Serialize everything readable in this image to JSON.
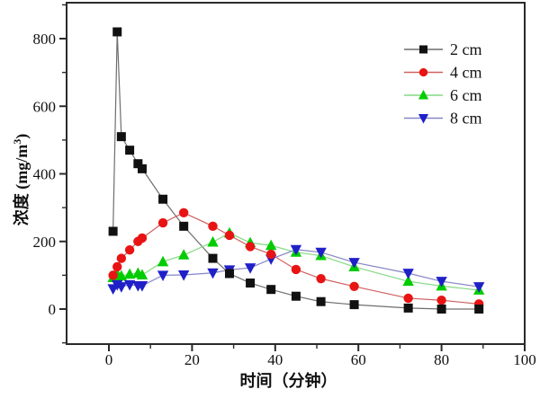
{
  "figure": {
    "background": "#ffffff",
    "frame_color": "#2a2a2a"
  },
  "chart_data": {
    "type": "line",
    "title": "",
    "xlabel": "时间（分钟）",
    "ylabel": "浓度 (mg/m³)",
    "ylabel_parts": {
      "prefix": "浓度 (mg/m",
      "sup": "3",
      "suffix": ")"
    },
    "xlim": [
      -10,
      100
    ],
    "ylim": [
      -104,
      906
    ],
    "x_ticks_major": [
      0,
      20,
      40,
      60,
      80,
      100
    ],
    "x_tick_labels": [
      "0",
      "20",
      "40",
      "60",
      "80",
      "100"
    ],
    "x_ticks_minor": [
      10,
      30,
      50,
      70,
      90
    ],
    "y_ticks_major": [
      0,
      200,
      400,
      600,
      800
    ],
    "y_tick_labels": [
      "0",
      "200",
      "400",
      "600",
      "800"
    ],
    "y_ticks_minor": [
      -100,
      100,
      300,
      500,
      700,
      900
    ],
    "grid": false,
    "legend_position": "top-right",
    "x": [
      1,
      2,
      3,
      5,
      7,
      8,
      13,
      18,
      25,
      29,
      34,
      39,
      45,
      51,
      59,
      72,
      80,
      89
    ],
    "series": [
      {
        "name": "2 cm",
        "marker": "square",
        "marker_color": "#111111",
        "line_color": "#6e6e6e",
        "values": [
          230,
          820,
          510,
          470,
          430,
          415,
          325,
          245,
          150,
          105,
          77,
          58,
          38,
          22,
          13,
          3,
          0,
          0
        ]
      },
      {
        "name": "4 cm",
        "marker": "circle",
        "marker_color": "#e81414",
        "line_color": "#d06060",
        "values": [
          100,
          125,
          150,
          175,
          200,
          210,
          255,
          285,
          245,
          218,
          185,
          162,
          117,
          90,
          67,
          32,
          26,
          15
        ]
      },
      {
        "name": "6 cm",
        "marker": "triangle-up",
        "marker_color": "#00cc00",
        "line_color": "#84d884",
        "values": [
          93,
          103,
          98,
          103,
          106,
          101,
          140,
          160,
          198,
          225,
          196,
          188,
          168,
          158,
          125,
          82,
          68,
          56
        ]
      },
      {
        "name": "8 cm",
        "marker": "triangle-down",
        "marker_color": "#2020c8",
        "line_color": "#8585c5",
        "values": [
          60,
          72,
          66,
          72,
          69,
          69,
          100,
          101,
          107,
          116,
          122,
          148,
          176,
          168,
          138,
          106,
          82,
          66
        ]
      }
    ]
  }
}
